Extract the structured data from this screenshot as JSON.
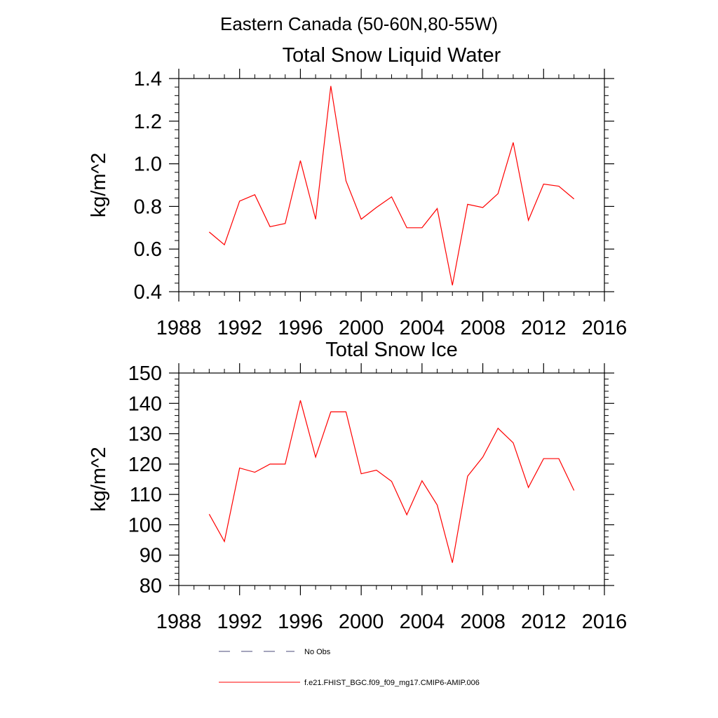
{
  "suptitle": "Eastern Canada (50-60N,80-55W)",
  "chart_data": [
    {
      "type": "line",
      "title": "Total Snow Liquid Water",
      "ylabel": "kg/m^2",
      "xlabel": "",
      "xlim": [
        1988,
        2016
      ],
      "ylim": [
        0.4,
        1.4
      ],
      "xticks": [
        1988,
        1992,
        1996,
        2000,
        2004,
        2008,
        2012,
        2016
      ],
      "yticks": [
        0.4,
        0.6,
        0.8,
        1.0,
        1.2,
        1.4
      ],
      "ytick_labels": [
        "0.4",
        "0.6",
        "0.8",
        "1.0",
        "1.2",
        "1.4"
      ],
      "series": [
        {
          "name": "f.e21.FHIST_BGC.f09_f09_mg17.CMIP6-AMIP.006",
          "color": "#ff0000",
          "x": [
            1990,
            1991,
            1992,
            1993,
            1994,
            1995,
            1996,
            1997,
            1998,
            1999,
            2000,
            2001,
            2002,
            2003,
            2004,
            2005,
            2006,
            2007,
            2008,
            2009,
            2010,
            2011,
            2012,
            2013,
            2014
          ],
          "values": [
            0.68,
            0.62,
            0.825,
            0.855,
            0.705,
            0.72,
            1.015,
            0.74,
            1.365,
            0.92,
            0.74,
            0.795,
            0.845,
            0.7,
            0.7,
            0.79,
            0.43,
            0.81,
            0.795,
            0.86,
            1.1,
            0.735,
            0.905,
            0.895,
            0.835
          ]
        }
      ]
    },
    {
      "type": "line",
      "title": "Total Snow Ice",
      "ylabel": "kg/m^2",
      "xlabel": "",
      "xlim": [
        1988,
        2016
      ],
      "ylim": [
        80,
        150
      ],
      "xticks": [
        1988,
        1992,
        1996,
        2000,
        2004,
        2008,
        2012,
        2016
      ],
      "yticks": [
        80,
        90,
        100,
        110,
        120,
        130,
        140,
        150
      ],
      "ytick_labels": [
        "80",
        "90",
        "100",
        "110",
        "120",
        "130",
        "140",
        "150"
      ],
      "series": [
        {
          "name": "f.e21.FHIST_BGC.f09_f09_mg17.CMIP6-AMIP.006",
          "color": "#ff0000",
          "x": [
            1990,
            1991,
            1992,
            1993,
            1994,
            1995,
            1996,
            1997,
            1998,
            1999,
            2000,
            2001,
            2002,
            2003,
            2004,
            2005,
            2006,
            2007,
            2008,
            2009,
            2010,
            2011,
            2012,
            2013,
            2014
          ],
          "values": [
            103.5,
            94.5,
            118.7,
            117.3,
            120.0,
            120.0,
            141.0,
            122.3,
            137.2,
            137.2,
            116.8,
            118.0,
            114.3,
            103.3,
            114.5,
            106.5,
            87.5,
            116.0,
            122.3,
            131.8,
            127.0,
            112.3,
            121.8,
            121.8,
            111.3
          ]
        }
      ]
    }
  ],
  "legend": [
    {
      "label": "No Obs",
      "color": "#4a4a7a",
      "style": "dashed"
    },
    {
      "label": "f.e21.FHIST_BGC.f09_f09_mg17.CMIP6-AMIP.006",
      "color": "#ff0000",
      "style": "solid"
    }
  ]
}
